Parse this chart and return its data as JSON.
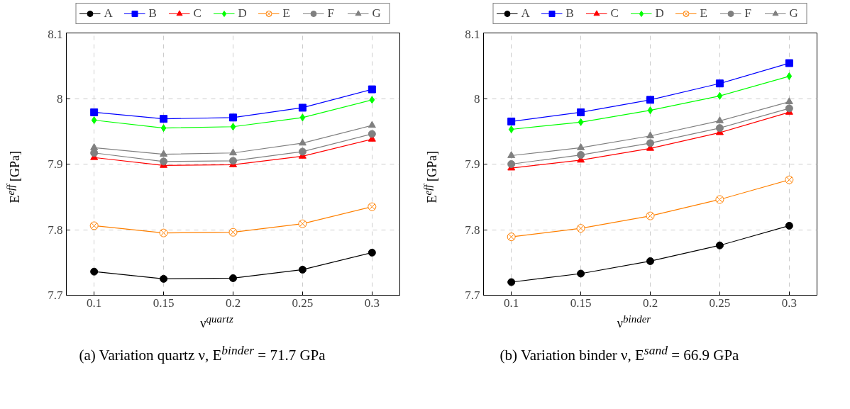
{
  "chart_data": [
    {
      "type": "line",
      "xlabel": "ν$^{quartz}$",
      "ylabel": "E$^{eff}$ [GPa]",
      "annotations": [
        "(a) Variation quartz ν, E$^{binder}$ = 71.7 GPa"
      ],
      "x": [
        0.1,
        0.15,
        0.2,
        0.25,
        0.3
      ],
      "xlim": [
        0.08,
        0.32
      ],
      "xticks": [
        0.1,
        0.15,
        0.2,
        0.25,
        0.3
      ],
      "ylim": [
        7.7,
        8.1
      ],
      "yticks": [
        7.7,
        7.8,
        7.9,
        8,
        8.1
      ],
      "grid": true,
      "legend": "top",
      "line_style": "solid",
      "series": [
        {
          "name": "A",
          "color": "#000000",
          "marker": "circle",
          "values": [
            7.736,
            7.725,
            7.726,
            7.739,
            7.765
          ]
        },
        {
          "name": "B",
          "color": "#0000ff",
          "marker": "square",
          "values": [
            7.979,
            7.969,
            7.971,
            7.986,
            8.014
          ]
        },
        {
          "name": "C",
          "color": "#ff0000",
          "marker": "triangle",
          "values": [
            7.91,
            7.898,
            7.899,
            7.912,
            7.938
          ]
        },
        {
          "name": "D",
          "color": "#00ff00",
          "marker": "diamond",
          "values": [
            7.967,
            7.955,
            7.957,
            7.971,
            7.998
          ]
        },
        {
          "name": "E",
          "color": "#ff8000",
          "marker": "cross",
          "values": [
            7.806,
            7.795,
            7.796,
            7.809,
            7.835
          ]
        },
        {
          "name": "F",
          "color": "#808080",
          "marker": "circle",
          "values": [
            7.917,
            7.904,
            7.905,
            7.919,
            7.946
          ]
        },
        {
          "name": "G",
          "color": "#808080",
          "marker": "triangle",
          "values": [
            7.925,
            7.915,
            7.917,
            7.932,
            7.959
          ]
        }
      ]
    },
    {
      "type": "line",
      "xlabel": "ν$^{binder}$",
      "ylabel": "E$^{eff}$ [GPa]",
      "annotations": [
        "(b) Variation binder ν, E$^{sand}$ = 66.9 GPa"
      ],
      "x": [
        0.1,
        0.15,
        0.2,
        0.25,
        0.3
      ],
      "xlim": [
        0.08,
        0.32
      ],
      "xticks": [
        0.1,
        0.15,
        0.2,
        0.25,
        0.3
      ],
      "ylim": [
        7.7,
        8.1
      ],
      "yticks": [
        7.7,
        7.8,
        7.9,
        8,
        8.1
      ],
      "grid": true,
      "legend": "top",
      "line_style": "solid",
      "series": [
        {
          "name": "A",
          "color": "#000000",
          "marker": "circle",
          "values": [
            7.72,
            7.733,
            7.752,
            7.776,
            7.806
          ]
        },
        {
          "name": "B",
          "color": "#0000ff",
          "marker": "square",
          "values": [
            7.965,
            7.979,
            7.998,
            8.023,
            8.054
          ]
        },
        {
          "name": "C",
          "color": "#ff0000",
          "marker": "triangle",
          "values": [
            7.894,
            7.906,
            7.924,
            7.948,
            7.979
          ]
        },
        {
          "name": "D",
          "color": "#00ff00",
          "marker": "diamond",
          "values": [
            7.953,
            7.964,
            7.982,
            8.004,
            8.034
          ]
        },
        {
          "name": "E",
          "color": "#ff8000",
          "marker": "cross",
          "values": [
            7.789,
            7.802,
            7.821,
            7.846,
            7.876
          ]
        },
        {
          "name": "F",
          "color": "#808080",
          "marker": "circle",
          "values": [
            7.9,
            7.914,
            7.932,
            7.955,
            7.985
          ]
        },
        {
          "name": "G",
          "color": "#808080",
          "marker": "triangle",
          "values": [
            7.913,
            7.925,
            7.943,
            7.966,
            7.995
          ]
        }
      ]
    }
  ]
}
